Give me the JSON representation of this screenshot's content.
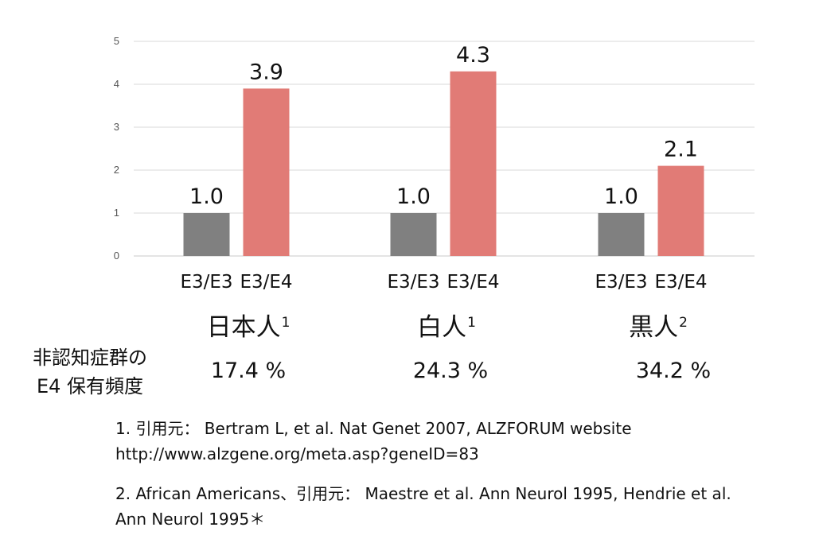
{
  "chart_data": {
    "type": "bar",
    "ylim": [
      0,
      5
    ],
    "yticks": [
      0,
      1,
      2,
      3,
      4,
      5
    ],
    "grid": true,
    "categories": [
      "E3/E3",
      "E3/E4"
    ],
    "groups": [
      {
        "label": "日本人",
        "note": "1",
        "values": [
          1.0,
          3.9
        ],
        "value_labels": [
          "1.0",
          "3.9"
        ],
        "frequency": "17.4 %"
      },
      {
        "label": "白人",
        "note": "1",
        "values": [
          1.0,
          4.3
        ],
        "value_labels": [
          "1.0",
          "4.3"
        ],
        "frequency": "24.3 %"
      },
      {
        "label": "黒人",
        "note": "2",
        "values": [
          1.0,
          2.1
        ],
        "value_labels": [
          "1.0",
          "2.1"
        ],
        "frequency": "34.2 %"
      }
    ],
    "colors": {
      "E3/E3": "#808080",
      "E3/E4": "#e17b76"
    },
    "row_label": {
      "line1": "非認知症群の",
      "line2": "E4 保有頻度"
    }
  },
  "references": {
    "ref1_line1": "1. 引用元： Bertram L, et al. Nat Genet 2007, ALZFORUM website",
    "ref1_line2": "http://www.alzgene.org/meta.asp?geneID=83",
    "ref2_line1": "2. African Americans、引用元： Maestre et al. Ann Neurol 1995, Hendrie  et al.",
    "ref2_line2": "Ann Neurol 1995＊"
  }
}
